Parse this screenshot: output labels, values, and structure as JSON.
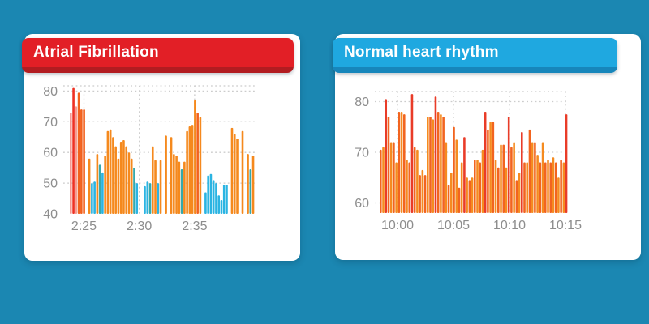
{
  "page": {
    "background": "#1b87b2"
  },
  "cards": [
    {
      "title": "Atrial Fibrillation",
      "header_color": "#e21f26",
      "header_edge_color": "#b21c21"
    },
    {
      "title": "Normal heart rhythm",
      "header_color": "#1fa8e0",
      "header_edge_color": "#1786bb"
    }
  ],
  "chart_data": [
    {
      "type": "bar",
      "title": "Atrial Fibrillation",
      "xlabel": "",
      "ylabel": "",
      "ylim": [
        40,
        81.7
      ],
      "baseline": 40,
      "grid": "dotted",
      "grid_color": "#cccccc",
      "axis_label_color": "#8d8d8d",
      "yticks": [
        80,
        70,
        60,
        50,
        40
      ],
      "gridlines_y": [
        80,
        70,
        60,
        50
      ],
      "xticks": [
        {
          "label": "2:25",
          "f": 0.108
        },
        {
          "label": "2:30",
          "f": 0.397
        },
        {
          "label": "2:35",
          "f": 0.686
        }
      ],
      "colors": {
        "o": "#f5891d",
        "d": "#f2611d",
        "r": "#ee3124",
        "s": "#f49d95",
        "b": "#2ab4e2",
        "t": "#35a9ad"
      },
      "color_legend": {
        "o": "orange",
        "d": "dark-orange",
        "r": "red",
        "s": "salmon",
        "b": "cyan",
        "t": "teal"
      },
      "bar_offset": 8,
      "bars": [
        [
          73,
          "s"
        ],
        [
          81,
          "r"
        ],
        [
          75,
          "s"
        ],
        [
          79.5,
          "d"
        ],
        [
          74,
          "d"
        ],
        [
          74,
          "d"
        ],
        null,
        [
          58,
          "o"
        ],
        [
          50,
          "b"
        ],
        [
          50.5,
          "b"
        ],
        [
          59.5,
          "o"
        ],
        [
          56,
          "t"
        ],
        [
          53.5,
          "b"
        ],
        [
          59,
          "o"
        ],
        [
          67,
          "o"
        ],
        [
          67.5,
          "o"
        ],
        [
          65,
          "o"
        ],
        [
          62,
          "o"
        ],
        [
          58,
          "o"
        ],
        [
          63.5,
          "o"
        ],
        [
          64,
          "o"
        ],
        [
          62,
          "o"
        ],
        [
          60,
          "o"
        ],
        [
          58,
          "o"
        ],
        [
          55,
          "t"
        ],
        [
          50,
          "b"
        ],
        null,
        null,
        [
          49,
          "b"
        ],
        [
          50.5,
          "b"
        ],
        [
          50,
          "t"
        ],
        [
          62,
          "o"
        ],
        [
          57.5,
          "o"
        ],
        [
          50,
          "b"
        ],
        [
          57.5,
          "o"
        ],
        null,
        [
          65.5,
          "o"
        ],
        null,
        [
          65,
          "o"
        ],
        [
          59.5,
          "o"
        ],
        [
          59,
          "o"
        ],
        [
          57,
          "o"
        ],
        [
          54.5,
          "t"
        ],
        [
          57,
          "o"
        ],
        [
          67,
          "o"
        ],
        [
          68.5,
          "o"
        ],
        [
          69,
          "o"
        ],
        [
          77,
          "o"
        ],
        [
          73,
          "d"
        ],
        [
          71.5,
          "o"
        ],
        null,
        [
          47,
          "b"
        ],
        [
          52.5,
          "b"
        ],
        [
          53,
          "b"
        ],
        [
          51,
          "b"
        ],
        [
          50,
          "b"
        ],
        [
          46,
          "b"
        ],
        [
          44.5,
          "b"
        ],
        [
          49.5,
          "b"
        ],
        [
          49.5,
          "b"
        ],
        null,
        [
          68,
          "o"
        ],
        [
          66,
          "o"
        ],
        [
          64.5,
          "o"
        ],
        null,
        [
          67,
          "o"
        ],
        null,
        [
          59.5,
          "o"
        ],
        [
          54.5,
          "t"
        ],
        [
          59,
          "o"
        ]
      ]
    },
    {
      "type": "bar",
      "title": "Normal heart rhythm",
      "xlabel": "",
      "ylabel": "",
      "ylim": [
        58,
        82
      ],
      "baseline": 58,
      "grid": "dotted",
      "grid_color": "#cccccc",
      "axis_label_color": "#8d8d8d",
      "yticks": [
        80,
        70,
        60
      ],
      "gridlines_y": [
        80,
        70,
        60
      ],
      "xticks": [
        {
          "label": "10:00",
          "f": 0.1176
        },
        {
          "label": "10:05",
          "f": 0.4076
        },
        {
          "label": "10:10",
          "f": 0.6975
        },
        {
          "label": "10:15",
          "f": 0.9874
        }
      ],
      "colors": {
        "o": "#f58b20",
        "d": "#f2641f",
        "r": "#e93c28"
      },
      "color_legend": {
        "o": "orange",
        "d": "dark-orange",
        "r": "red"
      },
      "bar_offset": 6,
      "bars": [
        [
          70.5,
          "d"
        ],
        [
          71,
          "o"
        ],
        [
          80.5,
          "r"
        ],
        [
          77,
          "d"
        ],
        [
          72,
          "o"
        ],
        [
          72,
          "d"
        ],
        [
          68,
          "o"
        ],
        [
          78,
          "d"
        ],
        [
          78,
          "o"
        ],
        [
          77.5,
          "d"
        ],
        [
          68.5,
          "o"
        ],
        [
          68,
          "d"
        ],
        [
          81.5,
          "r"
        ],
        [
          71,
          "d"
        ],
        [
          70.5,
          "o"
        ],
        [
          65.5,
          "d"
        ],
        [
          66.5,
          "o"
        ],
        [
          65.5,
          "d"
        ],
        [
          77,
          "o"
        ],
        [
          77,
          "d"
        ],
        [
          76.5,
          "o"
        ],
        [
          81,
          "r"
        ],
        [
          78,
          "d"
        ],
        [
          77.5,
          "o"
        ],
        [
          77,
          "d"
        ],
        [
          72,
          "o"
        ],
        [
          63.5,
          "d"
        ],
        [
          66,
          "o"
        ],
        [
          75,
          "d"
        ],
        [
          72.5,
          "o"
        ],
        [
          63,
          "d"
        ],
        [
          68,
          "o"
        ],
        [
          73,
          "r"
        ],
        [
          65,
          "o"
        ],
        [
          64.5,
          "d"
        ],
        [
          65,
          "o"
        ],
        [
          68.5,
          "d"
        ],
        [
          68.5,
          "o"
        ],
        [
          68,
          "d"
        ],
        [
          70.5,
          "o"
        ],
        [
          78,
          "r"
        ],
        [
          74.5,
          "d"
        ],
        [
          76,
          "o"
        ],
        [
          76,
          "d"
        ],
        [
          68.5,
          "o"
        ],
        [
          67,
          "d"
        ],
        [
          71.5,
          "o"
        ],
        [
          71.5,
          "d"
        ],
        [
          67,
          "o"
        ],
        [
          77,
          "r"
        ],
        [
          71,
          "d"
        ],
        [
          72,
          "o"
        ],
        [
          64.5,
          "d"
        ],
        [
          66,
          "o"
        ],
        [
          74,
          "r"
        ],
        [
          68,
          "d"
        ],
        [
          68,
          "o"
        ],
        [
          74.5,
          "d"
        ],
        [
          72,
          "o"
        ],
        [
          72,
          "d"
        ],
        [
          69.5,
          "o"
        ],
        [
          68,
          "d"
        ],
        [
          72,
          "o"
        ],
        [
          68,
          "d"
        ],
        [
          68.5,
          "o"
        ],
        [
          68,
          "d"
        ],
        [
          69,
          "o"
        ],
        [
          68,
          "d"
        ],
        [
          65,
          "o"
        ],
        [
          68.5,
          "d"
        ],
        [
          68,
          "o"
        ],
        [
          77.5,
          "r"
        ]
      ]
    }
  ]
}
